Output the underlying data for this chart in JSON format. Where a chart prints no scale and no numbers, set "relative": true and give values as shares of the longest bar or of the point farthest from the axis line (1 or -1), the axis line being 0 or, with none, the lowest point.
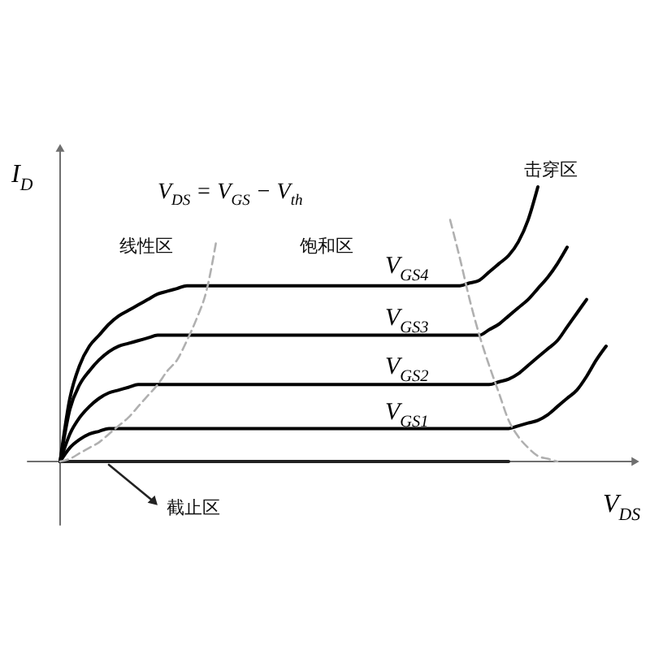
{
  "chart_data": {
    "type": "line",
    "relative": true,
    "xlabel": "V$_{DS}$",
    "ylabel": "I$_{D}$",
    "line_style": "solid",
    "annotations": [
      "线性区",
      "饱和区",
      "击穿区",
      "截止区"
    ],
    "categories": [
      null,
      null,
      null,
      null,
      null,
      null,
      null,
      null,
      null,
      null,
      null,
      null,
      null,
      null,
      null,
      null,
      null,
      null,
      null,
      null,
      null,
      null,
      null,
      null,
      null,
      null,
      null,
      null,
      null,
      null,
      null,
      null,
      null,
      null,
      null,
      null,
      null,
      null,
      null,
      null,
      null,
      null,
      null,
      null,
      null,
      null,
      null,
      null,
      null,
      null,
      null,
      null,
      null,
      null,
      null,
      null,
      null
    ],
    "series": [
      {
        "name": "V$_{GS4}$",
        "color": "#000000",
        "values": [
          0,
          0.23,
          0.35,
          0.42,
          0.46,
          0.5,
          0.53,
          0.55,
          0.57,
          0.59,
          0.61,
          0.62,
          0.63,
          0.64,
          0.64,
          0.64,
          0.64,
          0.64,
          0.64,
          0.64,
          0.64,
          0.64,
          0.64,
          0.64,
          0.64,
          0.64,
          0.64,
          0.64,
          0.64,
          0.64,
          0.64,
          0.64,
          0.64,
          0.64,
          0.64,
          0.64,
          0.64,
          0.64,
          0.64,
          0.64,
          0.64,
          0.64,
          0.65,
          0.66,
          0.69,
          0.72,
          0.75,
          0.8,
          0.88,
          1,
          null,
          null,
          null,
          null,
          null,
          null,
          null
        ]
      },
      {
        "name": "V$_{GS3}$",
        "color": "#000000",
        "values": [
          0,
          0.19,
          0.28,
          0.33,
          0.37,
          0.4,
          0.42,
          0.43,
          0.44,
          0.45,
          0.46,
          0.46,
          0.46,
          0.46,
          0.46,
          0.46,
          0.46,
          0.46,
          0.46,
          0.46,
          0.46,
          0.46,
          0.46,
          0.46,
          0.46,
          0.46,
          0.46,
          0.46,
          0.46,
          0.46,
          0.46,
          0.46,
          0.46,
          0.46,
          0.46,
          0.46,
          0.46,
          0.46,
          0.46,
          0.46,
          0.46,
          0.46,
          0.46,
          0.46,
          0.48,
          0.5,
          0.53,
          0.56,
          0.59,
          0.63,
          0.67,
          0.72,
          0.78,
          null,
          null,
          null,
          null
        ]
      },
      {
        "name": "V$_{GS2}$",
        "color": "#000000",
        "values": [
          0,
          0.1,
          0.16,
          0.2,
          0.23,
          0.25,
          0.26,
          0.27,
          0.28,
          0.28,
          0.28,
          0.28,
          0.28,
          0.28,
          0.28,
          0.28,
          0.28,
          0.28,
          0.28,
          0.28,
          0.28,
          0.28,
          0.28,
          0.28,
          0.28,
          0.28,
          0.28,
          0.28,
          0.28,
          0.28,
          0.28,
          0.28,
          0.28,
          0.28,
          0.28,
          0.28,
          0.28,
          0.28,
          0.28,
          0.28,
          0.28,
          0.28,
          0.28,
          0.28,
          0.28,
          0.29,
          0.3,
          0.32,
          0.35,
          0.38,
          0.41,
          0.44,
          0.49,
          0.54,
          0.59,
          null,
          null
        ]
      },
      {
        "name": "V$_{GS1}$",
        "color": "#000000",
        "values": [
          0,
          0.05,
          0.08,
          0.1,
          0.11,
          0.12,
          0.12,
          0.12,
          0.12,
          0.12,
          0.12,
          0.12,
          0.12,
          0.12,
          0.12,
          0.12,
          0.12,
          0.12,
          0.12,
          0.12,
          0.12,
          0.12,
          0.12,
          0.12,
          0.12,
          0.12,
          0.12,
          0.12,
          0.12,
          0.12,
          0.12,
          0.12,
          0.12,
          0.12,
          0.12,
          0.12,
          0.12,
          0.12,
          0.12,
          0.12,
          0.12,
          0.12,
          0.12,
          0.12,
          0.12,
          0.12,
          0.12,
          0.13,
          0.14,
          0.15,
          0.17,
          0.2,
          0.23,
          0.26,
          0.31,
          0.37,
          0.42
        ]
      },
      {
        "color": "#222222",
        "values": [
          0,
          0,
          0,
          0,
          0,
          0,
          0,
          0,
          0,
          0,
          0,
          0,
          0,
          0,
          0,
          0,
          0,
          0,
          0,
          0,
          0,
          0,
          0,
          0,
          0,
          0,
          0,
          0,
          0,
          0,
          0,
          0,
          0,
          0,
          0,
          0,
          0,
          0,
          0,
          0,
          0,
          0,
          0,
          0,
          0,
          0,
          0,
          null,
          null,
          null,
          null,
          null,
          null,
          null,
          null,
          null,
          null
        ]
      },
      {
        "name": "V$_{DS}$ = V$_{GS}$ − V$_{th}$",
        "color": "#b0b0b0",
        "line_style": "dashed",
        "values": [
          0,
          0.01,
          0.03,
          0.05,
          0.07,
          0.1,
          0.13,
          0.16,
          0.2,
          0.24,
          0.28,
          0.33,
          0.37,
          0.44,
          0.52,
          0.62,
          0.8,
          null,
          null,
          null,
          null,
          null,
          null,
          null,
          null,
          null,
          null,
          null,
          null,
          null,
          null,
          null,
          null,
          null,
          null,
          null,
          null,
          null,
          null,
          null,
          null,
          null,
          null,
          null,
          null,
          null,
          null,
          null,
          null,
          null,
          null,
          null,
          null,
          null,
          null,
          null,
          null
        ]
      },
      {
        "color": "#b0b0b0",
        "line_style": "dashed",
        "values": [
          null,
          null,
          null,
          null,
          null,
          null,
          null,
          null,
          null,
          null,
          null,
          null,
          null,
          null,
          null,
          null,
          null,
          null,
          null,
          null,
          null,
          null,
          null,
          null,
          null,
          null,
          null,
          null,
          null,
          null,
          null,
          null,
          null,
          null,
          null,
          null,
          null,
          null,
          null,
          null,
          0.88,
          0.74,
          0.59,
          0.46,
          0.35,
          0.25,
          0.15,
          0.09,
          0.05,
          0.02,
          0.01,
          0,
          null,
          null,
          null,
          null,
          null
        ]
      }
    ]
  }
}
